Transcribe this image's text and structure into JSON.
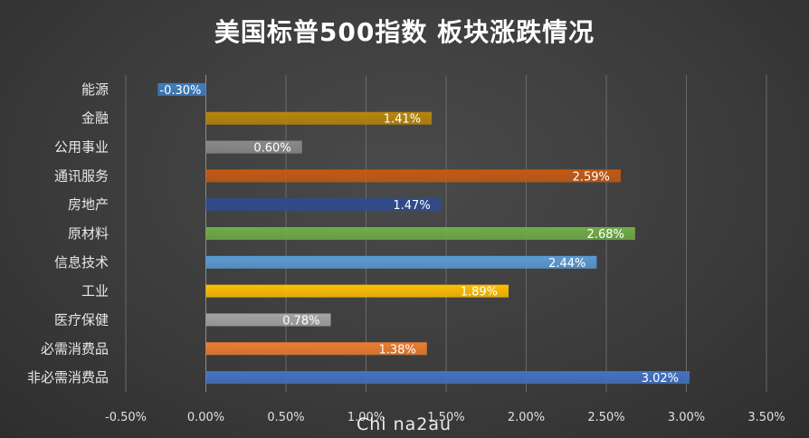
{
  "title": "美国标普500指数 板块涨跌情况",
  "watermark": "Chi na2au",
  "chart_data": {
    "type": "bar",
    "orientation": "horizontal",
    "title": "美国标普500指数 板块涨跌情况",
    "xlabel": "",
    "ylabel": "",
    "categories": [
      "能源",
      "金融",
      "公用事业",
      "通讯服务",
      "房地产",
      "原材料",
      "信息技术",
      "工业",
      "医疗保健",
      "必需消费品",
      "非必需消费品"
    ],
    "values": [
      -0.3,
      1.41,
      0.6,
      2.59,
      1.47,
      2.68,
      2.44,
      1.89,
      0.78,
      1.38,
      3.02
    ],
    "value_labels": [
      "-0.30%",
      "1.41%",
      "0.60%",
      "2.59%",
      "1.47%",
      "2.68%",
      "2.44%",
      "1.89%",
      "0.78%",
      "1.38%",
      "3.02%"
    ],
    "colors": [
      "#3e7cc0",
      "#b8860b",
      "#8a8a8a",
      "#c55a11",
      "#2f4b8c",
      "#70ad47",
      "#5b9bd5",
      "#ffc000",
      "#a5a5a5",
      "#ed7d31",
      "#4472c4"
    ],
    "xlim": [
      -0.5,
      3.5
    ],
    "ticks": [
      -0.5,
      0,
      0.5,
      1.0,
      1.5,
      2.0,
      2.5,
      3.0,
      3.5
    ],
    "tick_labels": [
      "-0.50%",
      "0.00%",
      "0.50%",
      "1.00%",
      "1.50%",
      "2.00%",
      "2.50%",
      "3.00%",
      "3.50%"
    ],
    "grid": true,
    "legend": "none"
  }
}
